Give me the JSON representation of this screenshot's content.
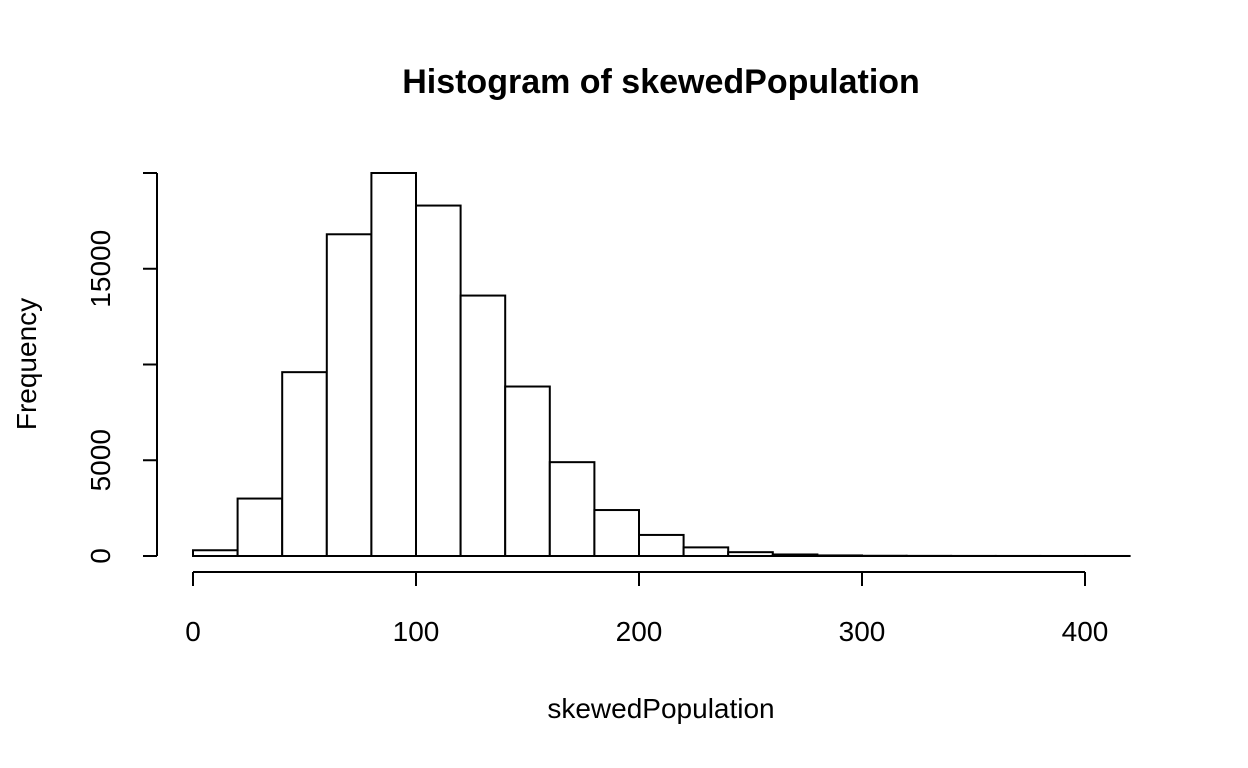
{
  "chart_data": {
    "type": "bar",
    "title": "Histogram of skewedPopulation",
    "xlabel": "skewedPopulation",
    "ylabel": "Frequency",
    "bin_width": 20,
    "bins": [
      {
        "start": 0,
        "end": 20,
        "count": 300
      },
      {
        "start": 20,
        "end": 40,
        "count": 3000
      },
      {
        "start": 40,
        "end": 60,
        "count": 9600
      },
      {
        "start": 60,
        "end": 80,
        "count": 16800
      },
      {
        "start": 80,
        "end": 100,
        "count": 20000
      },
      {
        "start": 100,
        "end": 120,
        "count": 18300
      },
      {
        "start": 120,
        "end": 140,
        "count": 13600
      },
      {
        "start": 140,
        "end": 160,
        "count": 8850
      },
      {
        "start": 160,
        "end": 180,
        "count": 4900
      },
      {
        "start": 180,
        "end": 200,
        "count": 2400
      },
      {
        "start": 200,
        "end": 220,
        "count": 1100
      },
      {
        "start": 220,
        "end": 240,
        "count": 450
      },
      {
        "start": 240,
        "end": 260,
        "count": 200
      },
      {
        "start": 260,
        "end": 280,
        "count": 80
      },
      {
        "start": 280,
        "end": 300,
        "count": 30
      },
      {
        "start": 300,
        "end": 320,
        "count": 12
      },
      {
        "start": 320,
        "end": 340,
        "count": 6
      },
      {
        "start": 340,
        "end": 360,
        "count": 3
      },
      {
        "start": 360,
        "end": 380,
        "count": 2
      },
      {
        "start": 380,
        "end": 400,
        "count": 1
      },
      {
        "start": 400,
        "end": 420,
        "count": 1
      }
    ],
    "xlim": [
      0,
      420
    ],
    "ylim": [
      0,
      20000
    ],
    "x_ticks": [
      0,
      100,
      200,
      300,
      400
    ],
    "y_ticks": [
      0,
      5000,
      10000,
      15000,
      20000
    ],
    "x_tick_labels": [
      "0",
      "100",
      "200",
      "300",
      "400"
    ],
    "y_tick_labels": [
      "0",
      "5000",
      "",
      "15000",
      ""
    ],
    "grid": false,
    "legend": "none"
  }
}
